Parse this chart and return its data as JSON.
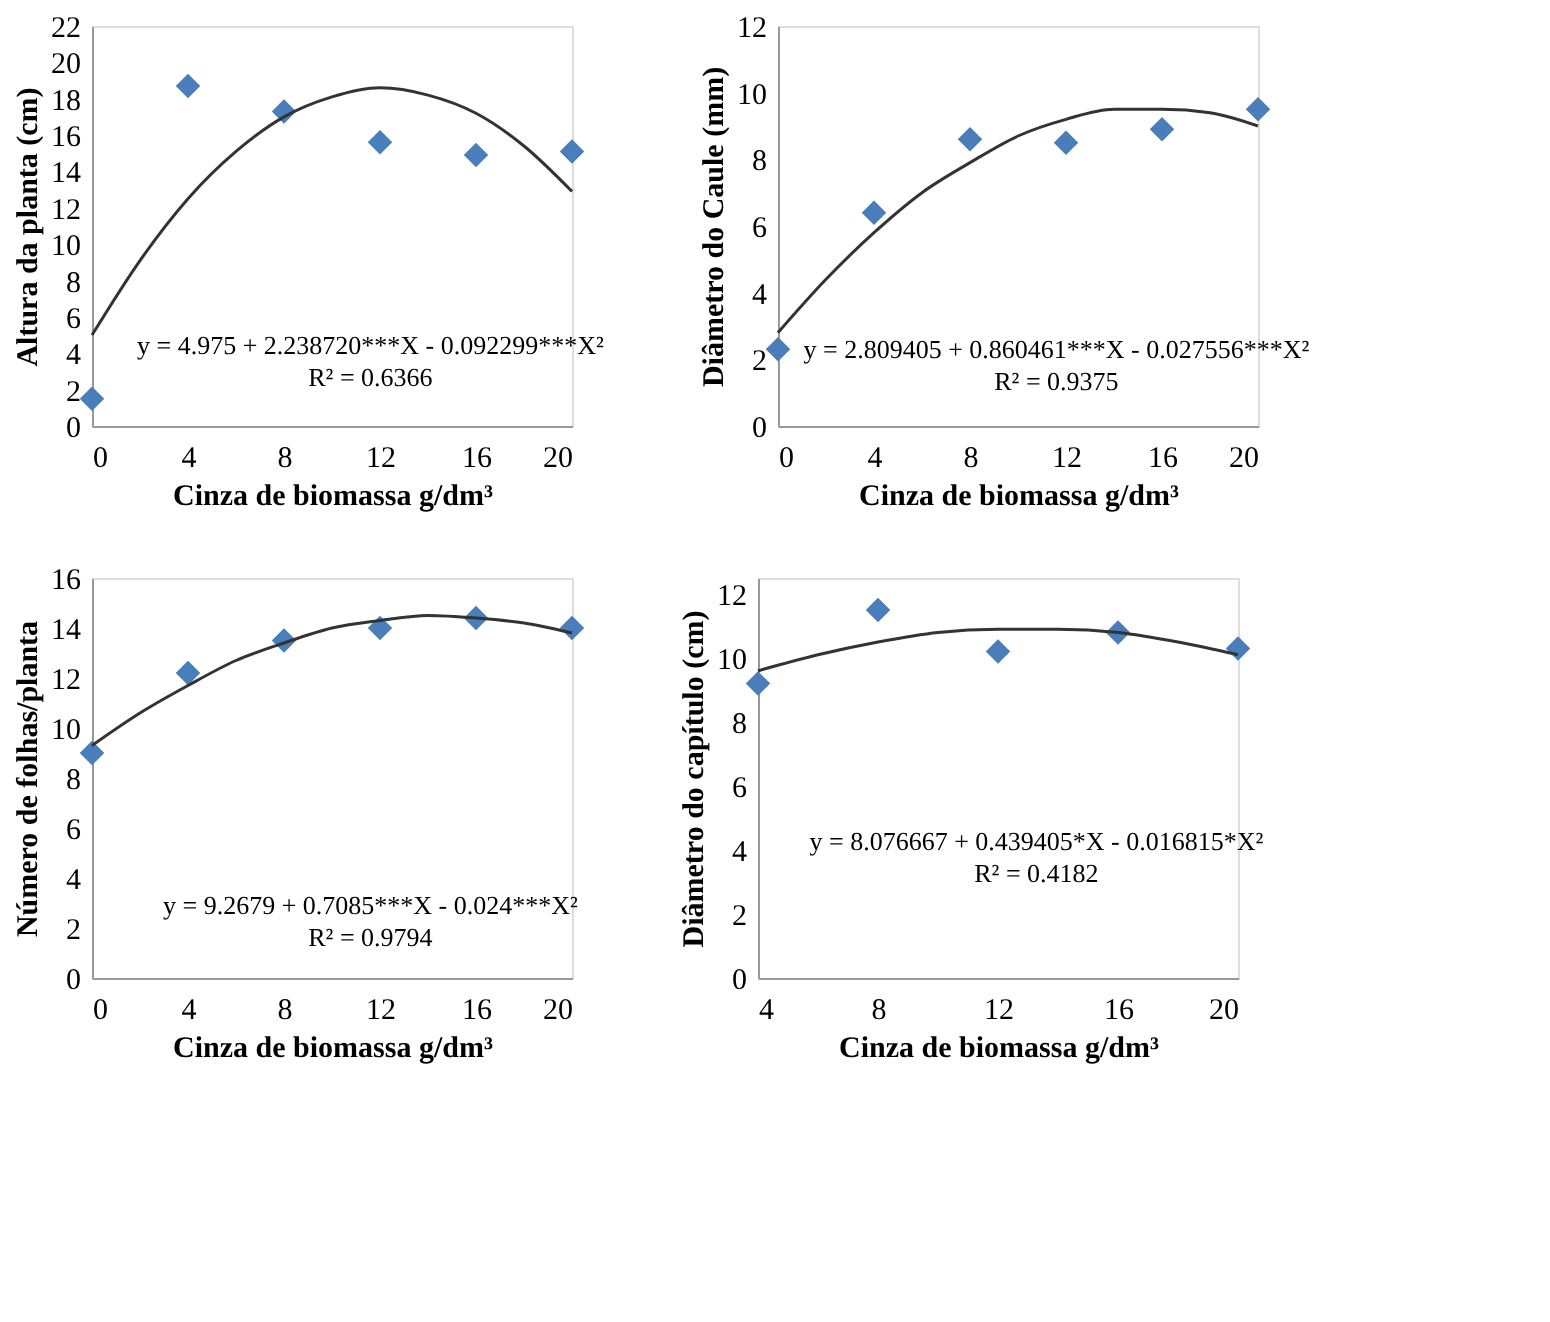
{
  "chart_data": [
    {
      "type": "scatter",
      "xlabel": "Cinza de biomassa g/dm³",
      "ylabel": "Altura da planta (cm)",
      "xlim": [
        0,
        20
      ],
      "xticks": [
        0,
        4,
        8,
        12,
        16,
        20
      ],
      "ylim": [
        0,
        22
      ],
      "yticks": [
        0,
        2,
        4,
        6,
        8,
        10,
        12,
        14,
        16,
        18,
        20,
        22
      ],
      "grid": false,
      "series": [
        {
          "color": "#4a7ebb",
          "marker": "diamond",
          "x": [
            0,
            4,
            8,
            12,
            16,
            20
          ],
          "values": [
            1.5,
            18.7,
            17.3,
            15.6,
            14.9,
            15.1
          ]
        },
        {
          "type": "line",
          "color": "#333333",
          "marker": "none",
          "x": [
            0,
            2,
            4,
            6,
            8,
            10,
            12,
            14,
            16,
            18,
            20
          ],
          "values": [
            5.0,
            9.1,
            12.5,
            15.1,
            17.0,
            18.1,
            18.6,
            18.2,
            17.2,
            15.4,
            12.9
          ]
        }
      ],
      "annotations": [
        "y = 4.975 + 2.238720***X - 0.092299***X²",
        "R² = 0.6366"
      ]
    },
    {
      "type": "scatter",
      "xlabel": "Cinza de biomassa g/dm³",
      "ylabel": "Diâmetro do Caule (mm)",
      "xlim": [
        0,
        20
      ],
      "xticks": [
        0,
        4,
        8,
        12,
        16,
        20
      ],
      "ylim": [
        0,
        12
      ],
      "yticks": [
        0,
        2,
        4,
        6,
        8,
        10,
        12
      ],
      "grid": false,
      "series": [
        {
          "color": "#4a7ebb",
          "marker": "diamond",
          "x": [
            0,
            4,
            8,
            12,
            16,
            20
          ],
          "values": [
            2.3,
            6.4,
            8.6,
            8.5,
            8.9,
            9.5
          ]
        },
        {
          "type": "line",
          "color": "#333333",
          "marker": "none",
          "x": [
            0,
            2,
            4,
            6,
            8,
            10,
            12,
            14,
            16,
            18,
            20
          ],
          "values": [
            2.8,
            4.4,
            5.8,
            7.0,
            7.9,
            8.7,
            9.2,
            9.5,
            9.5,
            9.4,
            9.0
          ]
        }
      ],
      "annotations": [
        "y = 2.809405 + 0.860461***X - 0.027556***X²",
        "R² = 0.9375"
      ]
    },
    {
      "type": "scatter",
      "xlabel": "Cinza de biomassa g/dm³",
      "ylabel": "Número de folhas/planta",
      "xlim": [
        0,
        20
      ],
      "xticks": [
        0,
        4,
        8,
        12,
        16,
        20
      ],
      "ylim": [
        0,
        16
      ],
      "yticks": [
        0,
        2,
        4,
        6,
        8,
        10,
        12,
        14,
        16
      ],
      "grid": false,
      "series": [
        {
          "color": "#4a7ebb",
          "marker": "diamond",
          "x": [
            0,
            4,
            8,
            12,
            16,
            20
          ],
          "values": [
            9.0,
            12.2,
            13.5,
            14.0,
            14.4,
            14.0
          ]
        },
        {
          "type": "line",
          "color": "#333333",
          "marker": "none",
          "x": [
            0,
            2,
            4,
            6,
            8,
            10,
            12,
            14,
            16,
            18,
            20
          ],
          "values": [
            9.3,
            10.6,
            11.7,
            12.7,
            13.4,
            14.0,
            14.3,
            14.5,
            14.4,
            14.2,
            13.8
          ]
        }
      ],
      "annotations": [
        "y = 9.2679 + 0.7085***X - 0.024***X²",
        "R² = 0.9794"
      ]
    },
    {
      "type": "scatter",
      "xlabel": "Cinza de biomassa g/dm³",
      "ylabel": "Diâmetro do capítulo (cm)",
      "xlim": [
        4,
        20
      ],
      "xticks": [
        4,
        8,
        12,
        16,
        20
      ],
      "ylim": [
        0,
        12.5
      ],
      "yticks": [
        0,
        2,
        4,
        6,
        8,
        10,
        12
      ],
      "grid": false,
      "series": [
        {
          "color": "#4a7ebb",
          "marker": "diamond",
          "x": [
            4,
            8,
            12,
            16,
            20
          ],
          "values": [
            9.2,
            11.5,
            10.2,
            10.8,
            10.3
          ]
        },
        {
          "type": "line",
          "color": "#333333",
          "marker": "none",
          "x": [
            4,
            6,
            8,
            10,
            12,
            14,
            16,
            18,
            20
          ],
          "values": [
            9.6,
            10.1,
            10.5,
            10.8,
            10.9,
            10.9,
            10.8,
            10.5,
            10.1
          ]
        }
      ],
      "annotations": [
        "y = 8.076667 + 0.439405*X - 0.016815*X²",
        "R² = 0.4182"
      ]
    }
  ]
}
